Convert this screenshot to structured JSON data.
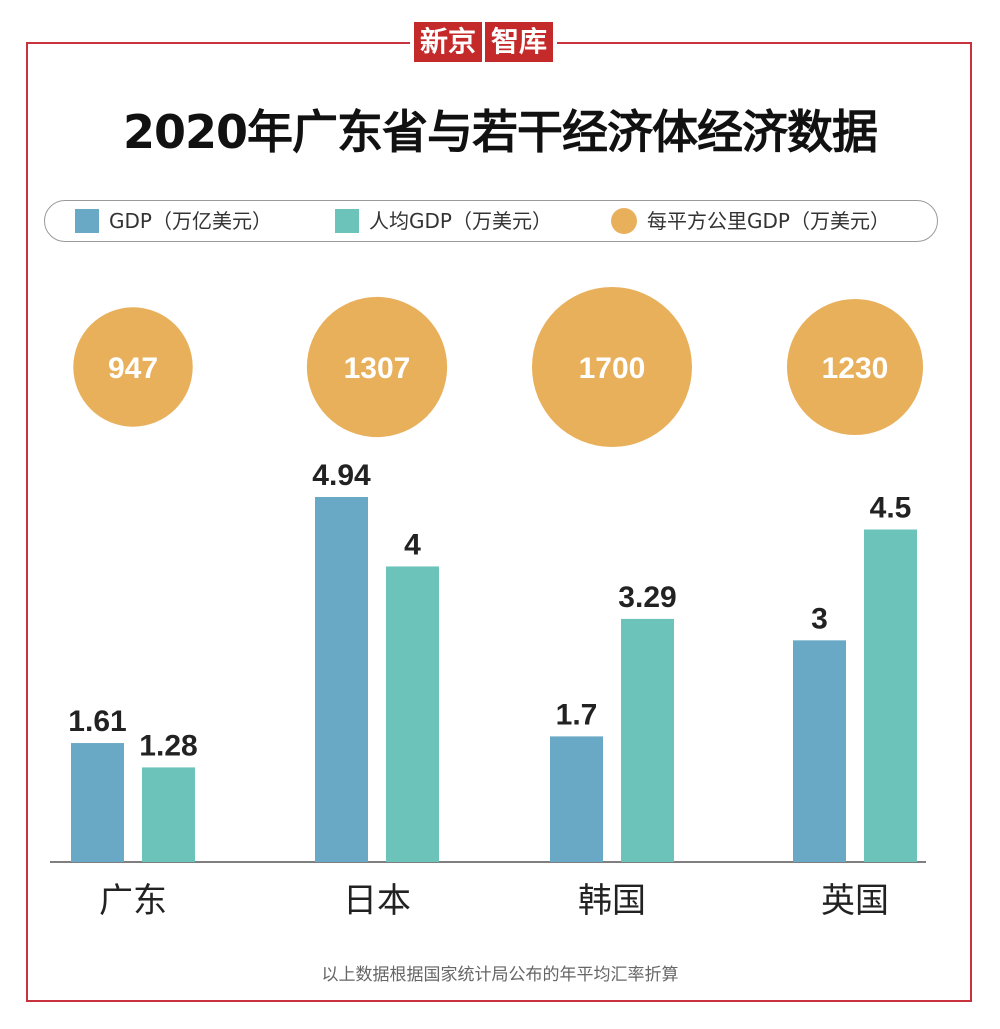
{
  "logo": {
    "part1": "新京",
    "part2": "智库"
  },
  "title": "2020年广东省与若干经济体经济数据",
  "legend": {
    "items": [
      {
        "label": "GDP（万亿美元）",
        "color": "#6aa9c6",
        "shape": "square"
      },
      {
        "label": "人均GDP（万美元）",
        "color": "#6cc3b9",
        "shape": "square"
      },
      {
        "label": "每平方公里GDP（万美元）",
        "color": "#e9b05c",
        "shape": "circle"
      }
    ]
  },
  "footnote": "以上数据根据国家统计局公布的年平均汇率折算",
  "chart_data": {
    "type": "bar",
    "categories": [
      "广东",
      "日本",
      "韩国",
      "英国"
    ],
    "series": [
      {
        "name": "GDP（万亿美元）",
        "values": [
          1.61,
          4.94,
          1.7,
          3
        ],
        "labels": [
          "1.61",
          "4.94",
          "1.7",
          "3"
        ],
        "color": "#6aa9c6"
      },
      {
        "name": "人均GDP（万美元）",
        "values": [
          1.28,
          4,
          3.29,
          4.5
        ],
        "labels": [
          "1.28",
          "4",
          "3.29",
          "4.5"
        ],
        "color": "#6cc3b9"
      }
    ],
    "bubbles": {
      "name": "每平方公里GDP（万美元）",
      "values": [
        947,
        1307,
        1700,
        1230
      ],
      "labels": [
        "947",
        "1307",
        "1700",
        "1230"
      ],
      "color": "#e9b05c"
    },
    "ylim": [
      0,
      4.94
    ],
    "grid": false,
    "legend_position": "top"
  }
}
